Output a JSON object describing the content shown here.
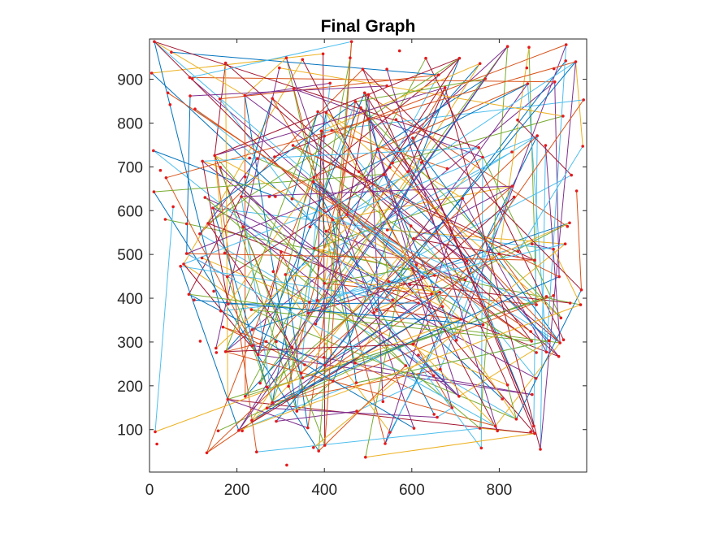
{
  "chart_data": {
    "type": "scatter",
    "title": "Final Graph",
    "xlabel": "",
    "ylabel": "",
    "xlim": [
      0,
      1000
    ],
    "ylim": [
      3,
      992
    ],
    "x_ticks": [
      0,
      200,
      400,
      600,
      800
    ],
    "y_ticks": [
      100,
      200,
      300,
      400,
      500,
      600,
      700,
      800,
      900
    ],
    "grid": false,
    "legend": "none",
    "node_color": "#e41a1c",
    "edge_colors": [
      "#0072bd",
      "#d95319",
      "#edb120",
      "#7e2f8e",
      "#77ac30",
      "#4dbeee",
      "#a2142f"
    ],
    "nodes_sampled": 240,
    "edges_sampled": 300
  }
}
